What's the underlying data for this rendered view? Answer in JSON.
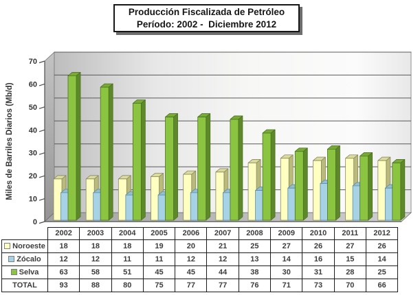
{
  "title": {
    "line1": "Producción Fiscalizada de Petróleo",
    "line2": "Período: 2002 -  Diciembre 2012"
  },
  "chart_data": {
    "type": "bar",
    "style": "3d-clustered-column",
    "categories": [
      "2002",
      "2003",
      "2004",
      "2005",
      "2006",
      "2007",
      "2008",
      "2009",
      "2010",
      "2011",
      "2012"
    ],
    "series": [
      {
        "name": "Noroeste",
        "color": "#FFFFC2",
        "top_color": "#DBDB9E",
        "side_color": "#BABA7C",
        "edge_color": "#89895E",
        "values": [
          18,
          18,
          18,
          19,
          20,
          21,
          25,
          27,
          26,
          27,
          26
        ]
      },
      {
        "name": "Zócalo",
        "color": "#A7D2E5",
        "top_color": "#92BFD3",
        "side_color": "#74A4BC",
        "edge_color": "#5D8BA1",
        "values": [
          12,
          12,
          11,
          11,
          12,
          12,
          13,
          14,
          16,
          15,
          14
        ]
      },
      {
        "name": "Selva",
        "color": "#8AC440",
        "top_color": "#78AB36",
        "side_color": "#5E892B",
        "edge_color": "#4C7022",
        "values": [
          63,
          58,
          51,
          45,
          45,
          44,
          38,
          30,
          31,
          28,
          25
        ]
      }
    ],
    "totals": [
      93,
      88,
      80,
      75,
      77,
      77,
      76,
      71,
      73,
      70,
      66
    ],
    "total_label": "TOTAL",
    "ylabel": "Miles de Barriles Diarios (Mb/d)",
    "ylim": [
      0,
      70
    ],
    "ytick_step": 10,
    "grid": true,
    "legend_position": "table-left",
    "gridline_color": "#595959",
    "axis_text_color": "#333333"
  }
}
